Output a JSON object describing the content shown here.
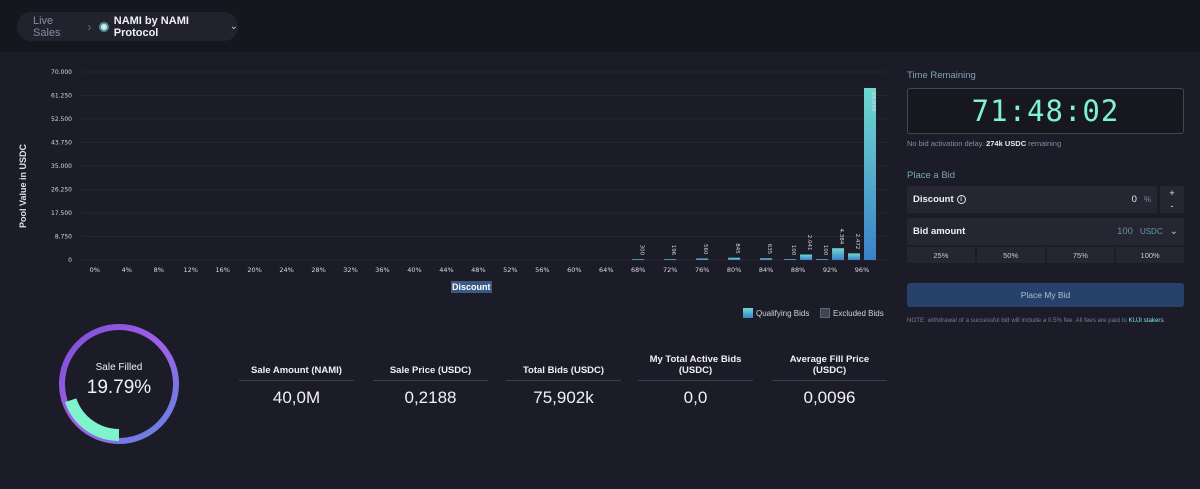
{
  "breadcrumb": {
    "root": "Live Sales",
    "current": "NAMI by NAMI Protocol"
  },
  "chart_data": {
    "type": "bar",
    "ylabel": "Pool Value in USDC",
    "xlabel": "Discount",
    "y_ticks": [
      "70.000",
      "61.250",
      "52.500",
      "43.750",
      "35.000",
      "26.250",
      "17.500",
      "8.750",
      "0"
    ],
    "ylim": [
      0,
      70000
    ],
    "categories": [
      "0%",
      "4%",
      "8%",
      "12%",
      "16%",
      "20%",
      "24%",
      "28%",
      "32%",
      "36%",
      "40%",
      "44%",
      "48%",
      "52%",
      "56%",
      "60%",
      "64%",
      "68%",
      "72%",
      "76%",
      "80%",
      "84%",
      "88%",
      "92%",
      "96%"
    ],
    "bars": [
      {
        "discount": 68,
        "value": 300,
        "label": "300"
      },
      {
        "discount": 72,
        "value": 196,
        "label": "196"
      },
      {
        "discount": 76,
        "value": 560,
        "label": "560"
      },
      {
        "discount": 80,
        "value": 845,
        "label": "845"
      },
      {
        "discount": 84,
        "value": 635,
        "label": "635"
      },
      {
        "discount": 87,
        "value": 100,
        "label": "100"
      },
      {
        "discount": 89,
        "value": 2041,
        "label": "2.041"
      },
      {
        "discount": 91,
        "value": 100,
        "label": "100"
      },
      {
        "discount": 93,
        "value": 4384,
        "label": "4.384"
      },
      {
        "discount": 95,
        "value": 2472,
        "label": "2.472"
      },
      {
        "discount": 97,
        "value": 64049,
        "label": "64.049"
      }
    ],
    "legend": [
      "Qualifying Bids",
      "Excluded Bids"
    ]
  },
  "sale_filled": {
    "label": "Sale Filled",
    "value": "19.79%",
    "fraction": 0.1979
  },
  "stats": [
    {
      "label": "Sale Amount (NAMI)",
      "value": "40,0M"
    },
    {
      "label": "Sale Price (USDC)",
      "value": "0,2188"
    },
    {
      "label": "Total Bids (USDC)",
      "value": "75,902k"
    },
    {
      "label": "My Total Active Bids (USDC)",
      "value": "0,0"
    },
    {
      "label": "Average Fill Price (USDC)",
      "value": "0,0096"
    }
  ],
  "sidebar": {
    "time_title": "Time Remaining",
    "timer": "71:48:02",
    "delay_prefix": "No bid activation delay.",
    "delay_amount": "274k USDC",
    "delay_suffix": "remaining",
    "bid_title": "Place a Bid",
    "discount_label": "Discount",
    "discount_value": "0",
    "discount_unit": "%",
    "stepper_plus": "+",
    "stepper_minus": "-",
    "amount_label": "Bid amount",
    "amount_value": "100",
    "amount_unit": "USDC",
    "percents": [
      "25%",
      "50%",
      "75%",
      "100%"
    ],
    "place_button": "Place My Bid",
    "note_prefix": "NOTE: withdrawal of a successful bid will include a 0.5% fee. All fees are paid to",
    "note_link": "KUJI stakers",
    "note_suffix": "."
  },
  "colors": {
    "background": "#1c1c28",
    "accent_green": "#7ff3cc",
    "donut_purple": "#9b59e6",
    "bar_top": "#6fd8d0",
    "bar_bottom": "#3a82c8"
  }
}
